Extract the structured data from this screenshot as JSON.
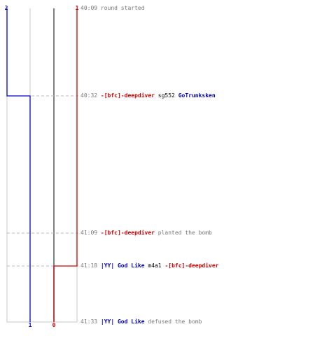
{
  "chart_data": {
    "type": "line",
    "top_labels": {
      "blue": "2",
      "red": "1"
    },
    "bottom_labels": {
      "blue": "1",
      "red": "0"
    },
    "series": [
      {
        "color": "#0000cc",
        "values": [
          2,
          1,
          1,
          1,
          1
        ]
      },
      {
        "color": "#cc0000",
        "values": [
          1,
          1,
          1,
          0,
          0
        ]
      }
    ],
    "events": [
      {
        "time": "40:09",
        "parts": [
          {
            "text": "round started",
            "style": "plain"
          }
        ]
      },
      {
        "time": "40:32",
        "parts": [
          {
            "text": "-[bfc]-deepdiver",
            "style": "red"
          },
          {
            "text": " sg552 ",
            "style": "weapon"
          },
          {
            "text": "GoTrunksken",
            "style": "blue"
          }
        ]
      },
      {
        "time": "41:09",
        "parts": [
          {
            "text": "-[bfc]-deepdiver",
            "style": "red"
          },
          {
            "text": " planted the bomb",
            "style": "plain"
          }
        ]
      },
      {
        "time": "41:18",
        "parts": [
          {
            "text": "|YY| God Like",
            "style": "blue"
          },
          {
            "text": " m4a1 ",
            "style": "weapon"
          },
          {
            "text": "-[bfc]-deepdiver",
            "style": "red"
          }
        ]
      },
      {
        "time": "41:33",
        "parts": [
          {
            "text": "|YY| God Like",
            "style": "blue"
          },
          {
            "text": " defused the bomb",
            "style": "plain"
          }
        ]
      }
    ]
  }
}
